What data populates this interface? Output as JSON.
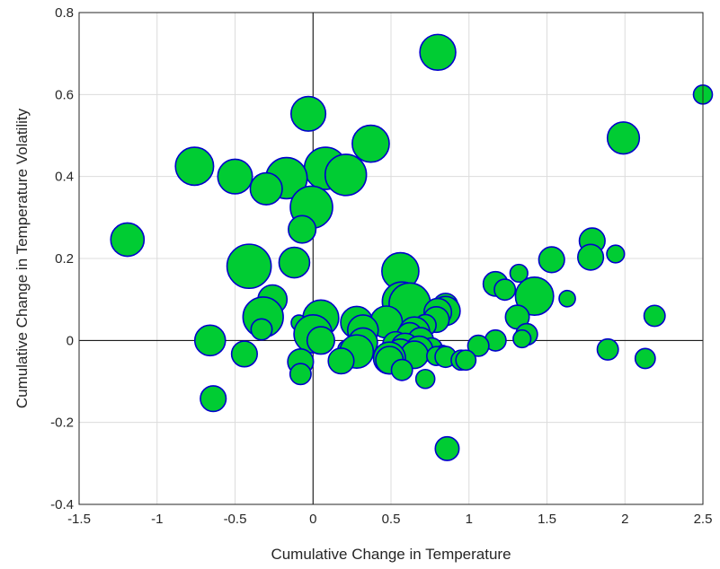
{
  "colors": {
    "fill": "#00cc33",
    "edge": "#0000cc",
    "grid": "#dcdcdc",
    "axis": "#262626"
  },
  "chart_data": {
    "type": "scatter",
    "title": "",
    "xlabel": "Cumulative Change in Temperature",
    "ylabel": "Cumulative Change in Temperature Volatility",
    "xlim": [
      -1.5,
      2.5
    ],
    "ylim": [
      -0.4,
      0.8
    ],
    "xticks": [
      -1.5,
      -1,
      -0.5,
      0,
      0.5,
      1,
      1.5,
      2,
      2.5
    ],
    "yticks": [
      -0.4,
      -0.2,
      0,
      0.2,
      0.4,
      0.6,
      0.8
    ],
    "xtick_labels": [
      "-1.5",
      "-1",
      "-0.5",
      "0",
      "0.5",
      "1",
      "1.5",
      "2",
      "2.5"
    ],
    "ytick_labels": [
      "-0.4",
      "-0.2",
      "0",
      "0.2",
      "0.4",
      "0.6",
      "0.8"
    ],
    "grid": true,
    "zero_lines": true,
    "marker_size_note": "bubble area encodes a third variable (relative size 1-10)",
    "points": [
      {
        "x": 0.8,
        "y": 0.703,
        "s": 6
      },
      {
        "x": 2.5,
        "y": 0.6,
        "s": 1
      },
      {
        "x": -0.03,
        "y": 0.553,
        "s": 5.5
      },
      {
        "x": 1.99,
        "y": 0.494,
        "s": 4.5
      },
      {
        "x": 0.37,
        "y": 0.48,
        "s": 6.5
      },
      {
        "x": -0.76,
        "y": 0.425,
        "s": 7
      },
      {
        "x": 0.08,
        "y": 0.42,
        "s": 9
      },
      {
        "x": 0.21,
        "y": 0.404,
        "s": 8.5
      },
      {
        "x": -0.5,
        "y": 0.4,
        "s": 5.5
      },
      {
        "x": -0.17,
        "y": 0.396,
        "s": 8.5
      },
      {
        "x": -0.3,
        "y": 0.37,
        "s": 4.5
      },
      {
        "x": -0.01,
        "y": 0.325,
        "s": 9
      },
      {
        "x": -0.07,
        "y": 0.271,
        "s": 3
      },
      {
        "x": -1.19,
        "y": 0.246,
        "s": 5
      },
      {
        "x": 1.79,
        "y": 0.243,
        "s": 2.5
      },
      {
        "x": 1.94,
        "y": 0.211,
        "s": 0.8
      },
      {
        "x": 1.78,
        "y": 0.203,
        "s": 2.5
      },
      {
        "x": 1.53,
        "y": 0.197,
        "s": 2.5
      },
      {
        "x": -0.12,
        "y": 0.19,
        "s": 4
      },
      {
        "x": -0.41,
        "y": 0.181,
        "s": 10
      },
      {
        "x": 0.56,
        "y": 0.169,
        "s": 6.5
      },
      {
        "x": 1.32,
        "y": 0.164,
        "s": 0.8
      },
      {
        "x": 1.17,
        "y": 0.138,
        "s": 2.2
      },
      {
        "x": 1.23,
        "y": 0.124,
        "s": 1.4
      },
      {
        "x": 1.42,
        "y": 0.108,
        "s": 7
      },
      {
        "x": 1.63,
        "y": 0.102,
        "s": 0.6
      },
      {
        "x": -0.26,
        "y": 0.1,
        "s": 3.5
      },
      {
        "x": 0.57,
        "y": 0.095,
        "s": 7.5
      },
      {
        "x": 0.62,
        "y": 0.09,
        "s": 8.5
      },
      {
        "x": 0.85,
        "y": 0.085,
        "s": 2.2
      },
      {
        "x": 0.85,
        "y": 0.072,
        "s": 3.5
      },
      {
        "x": 0.8,
        "y": 0.069,
        "s": 3
      },
      {
        "x": -0.31,
        "y": 0.064,
        "s": 0.6
      },
      {
        "x": 0.05,
        "y": 0.055,
        "s": 6
      },
      {
        "x": -0.32,
        "y": 0.057,
        "s": 8
      },
      {
        "x": 2.19,
        "y": 0.06,
        "s": 1.4
      },
      {
        "x": 1.31,
        "y": 0.057,
        "s": 2
      },
      {
        "x": 0.79,
        "y": 0.051,
        "s": 2.5
      },
      {
        "x": 0.47,
        "y": 0.045,
        "s": 4.5
      },
      {
        "x": 0.28,
        "y": 0.044,
        "s": 4.5
      },
      {
        "x": -0.09,
        "y": 0.043,
        "s": 0.5
      },
      {
        "x": 0.72,
        "y": 0.037,
        "s": 1.5
      },
      {
        "x": -0.33,
        "y": 0.027,
        "s": 1.4
      },
      {
        "x": 0.32,
        "y": 0.025,
        "s": 4
      },
      {
        "x": 0.65,
        "y": 0.02,
        "s": 4
      },
      {
        "x": 0.0,
        "y": 0.016,
        "s": 7
      },
      {
        "x": 1.37,
        "y": 0.015,
        "s": 1.5
      },
      {
        "x": 0.62,
        "y": 0.012,
        "s": 2.5
      },
      {
        "x": -0.66,
        "y": 0.0,
        "s": 4
      },
      {
        "x": 0.05,
        "y": 0.0,
        "s": 3
      },
      {
        "x": 0.69,
        "y": 0.0,
        "s": 2.5
      },
      {
        "x": 1.17,
        "y": 0.0,
        "s": 1.4
      },
      {
        "x": 1.34,
        "y": 0.004,
        "s": 0.8
      },
      {
        "x": 0.32,
        "y": -0.005,
        "s": 3.5
      },
      {
        "x": 0.53,
        "y": -0.01,
        "s": 2.5
      },
      {
        "x": 1.06,
        "y": -0.013,
        "s": 1.4
      },
      {
        "x": 0.59,
        "y": -0.016,
        "s": 3
      },
      {
        "x": 0.76,
        "y": -0.02,
        "s": 1.5
      },
      {
        "x": 0.22,
        "y": -0.022,
        "s": 1
      },
      {
        "x": 0.68,
        "y": -0.023,
        "s": 3
      },
      {
        "x": 1.89,
        "y": -0.022,
        "s": 1.4
      },
      {
        "x": 0.28,
        "y": -0.027,
        "s": 5
      },
      {
        "x": 0.56,
        "y": -0.03,
        "s": 3
      },
      {
        "x": 0.65,
        "y": -0.035,
        "s": 3
      },
      {
        "x": 0.83,
        "y": -0.031,
        "s": 0.5
      },
      {
        "x": -0.44,
        "y": -0.033,
        "s": 2.5
      },
      {
        "x": 0.79,
        "y": -0.038,
        "s": 1
      },
      {
        "x": 0.85,
        "y": -0.04,
        "s": 1.4
      },
      {
        "x": 0.49,
        "y": -0.043,
        "s": 4.5
      },
      {
        "x": 0.49,
        "y": -0.048,
        "s": 3
      },
      {
        "x": 2.13,
        "y": -0.044,
        "s": 1.2
      },
      {
        "x": 0.95,
        "y": -0.048,
        "s": 1.2
      },
      {
        "x": 0.98,
        "y": -0.048,
        "s": 1.2
      },
      {
        "x": -0.08,
        "y": -0.052,
        "s": 2.5
      },
      {
        "x": 0.18,
        "y": -0.05,
        "s": 2.5
      },
      {
        "x": 0.57,
        "y": -0.072,
        "s": 1.4
      },
      {
        "x": -0.08,
        "y": -0.082,
        "s": 1.4
      },
      {
        "x": 0.72,
        "y": -0.094,
        "s": 1
      },
      {
        "x": -0.64,
        "y": -0.142,
        "s": 2.5
      },
      {
        "x": 0.86,
        "y": -0.264,
        "s": 2
      }
    ]
  }
}
